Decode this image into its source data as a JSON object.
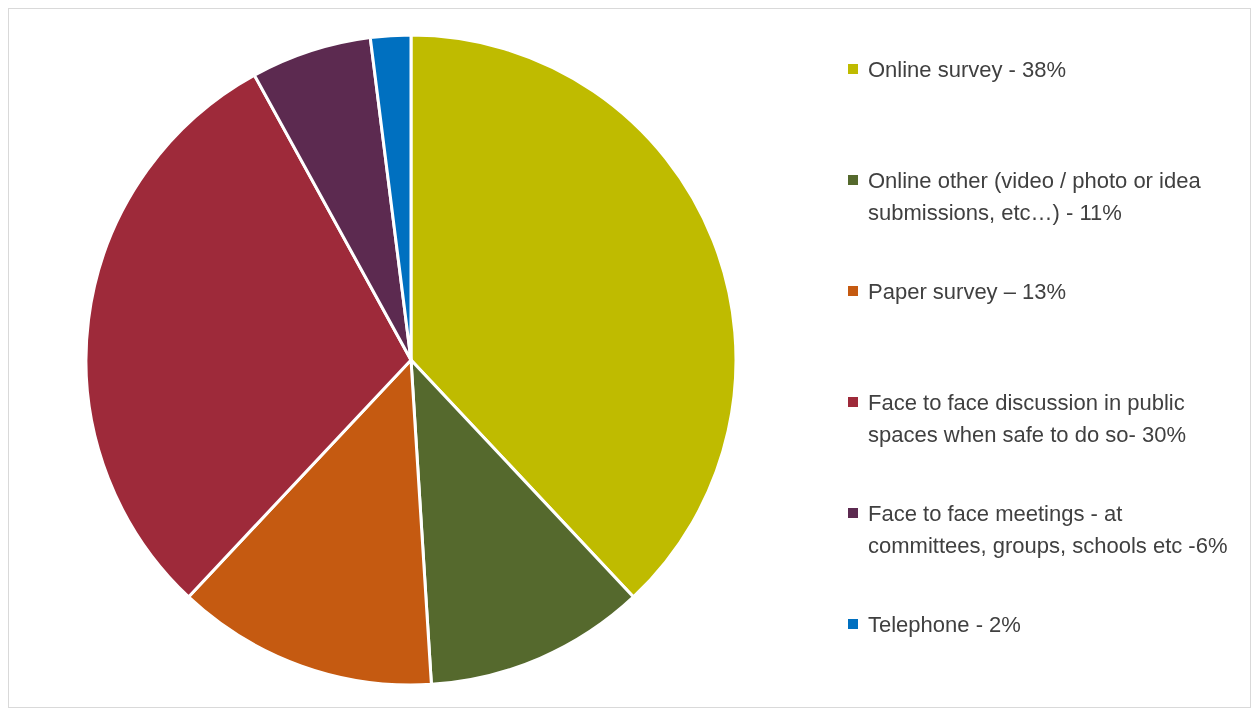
{
  "chart_data": {
    "type": "pie",
    "categories": [
      "Online survey - 38%",
      "Online other (video / photo or idea submissions,  etc…) - 11%",
      "Paper survey – 13%",
      "Face to face discussion in public spaces when safe to do so- 30%",
      "Face to face meetings - at committees, groups, schools etc -6%",
      "Telephone - 2%"
    ],
    "values": [
      38,
      11,
      13,
      30,
      6,
      2
    ],
    "colors": [
      "#bfbb00",
      "#55692d",
      "#c55a11",
      "#9e2a3a",
      "#5c2a50",
      "#0070c0"
    ],
    "legend": "right"
  }
}
